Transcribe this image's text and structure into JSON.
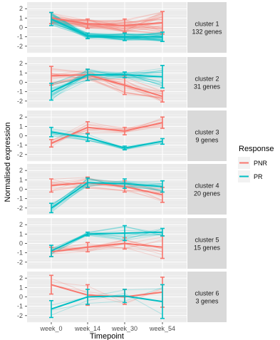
{
  "chart_data": {
    "type": "line",
    "xlabel": "Timepoint",
    "ylabel": "Normalised expression",
    "categories": [
      "week_0",
      "week_14",
      "week_30",
      "week_54"
    ],
    "ylim": [
      -2.7,
      2.7
    ],
    "yticks": [
      -2,
      -1,
      0,
      1,
      2
    ],
    "legend": {
      "title": "Response",
      "placement": "right",
      "entries": [
        {
          "name": "PNR",
          "color": "#F8766D"
        },
        {
          "name": "PR",
          "color": "#00BFC4"
        }
      ]
    },
    "facets": [
      {
        "label_line1": "cluster 1",
        "label_line2": "132 genes",
        "series": [
          {
            "name": "PNR",
            "mean": [
              1.0,
              0.4,
              0.2,
              0.5
            ],
            "err": [
              0.6,
              0.5,
              0.7,
              1.2
            ]
          },
          {
            "name": "PR",
            "mean": [
              0.9,
              -0.9,
              -1.0,
              -1.0
            ],
            "err": [
              0.7,
              0.3,
              0.4,
              0.5
            ]
          }
        ]
      },
      {
        "label_line1": "cluster 2",
        "label_line2": "31 genes",
        "series": [
          {
            "name": "PNR",
            "mean": [
              0.7,
              0.8,
              -0.3,
              -1.5
            ],
            "err": [
              1.0,
              0.6,
              1.0,
              0.6
            ]
          },
          {
            "name": "PR",
            "mean": [
              -1.0,
              0.8,
              0.8,
              0.6
            ],
            "err": [
              0.9,
              0.6,
              0.3,
              1.2
            ]
          }
        ]
      },
      {
        "label_line1": "cluster 3",
        "label_line2": "9 genes",
        "series": [
          {
            "name": "PNR",
            "mean": [
              -0.8,
              0.9,
              0.5,
              1.4
            ],
            "err": [
              0.4,
              0.6,
              0.4,
              0.6
            ]
          },
          {
            "name": "PR",
            "mean": [
              0.4,
              -0.2,
              -1.3,
              -0.6
            ],
            "err": [
              0.5,
              0.4,
              0.2,
              0.3
            ]
          }
        ]
      },
      {
        "label_line1": "cluster 4",
        "label_line2": "20 genes",
        "series": [
          {
            "name": "PNR",
            "mean": [
              0.4,
              0.7,
              0.3,
              -0.6
            ],
            "err": [
              0.7,
              0.6,
              0.6,
              0.8
            ]
          },
          {
            "name": "PR",
            "mean": [
              -2.0,
              0.7,
              0.6,
              0.3
            ],
            "err": [
              0.5,
              0.5,
              0.5,
              0.6
            ]
          }
        ]
      },
      {
        "label_line1": "cluster 5",
        "label_line2": "15 genes",
        "series": [
          {
            "name": "PNR",
            "mean": [
              -0.9,
              -0.4,
              0.0,
              -0.4
            ],
            "err": [
              0.5,
              0.5,
              0.6,
              1.2
            ]
          },
          {
            "name": "PR",
            "mean": [
              -0.8,
              1.0,
              1.1,
              1.2
            ],
            "err": [
              0.6,
              0.2,
              0.8,
              0.4
            ]
          }
        ]
      },
      {
        "label_line1": "cluster 6",
        "label_line2": "3 genes",
        "series": [
          {
            "name": "PNR",
            "mean": [
              1.3,
              0.2,
              0.0,
              0.5
            ],
            "err": [
              1.0,
              1.1,
              0.8,
              1.6
            ]
          },
          {
            "name": "PR",
            "mean": [
              -1.3,
              0.0,
              0.1,
              -0.5
            ],
            "err": [
              0.9,
              0.8,
              0.7,
              1.8
            ]
          }
        ]
      }
    ]
  }
}
